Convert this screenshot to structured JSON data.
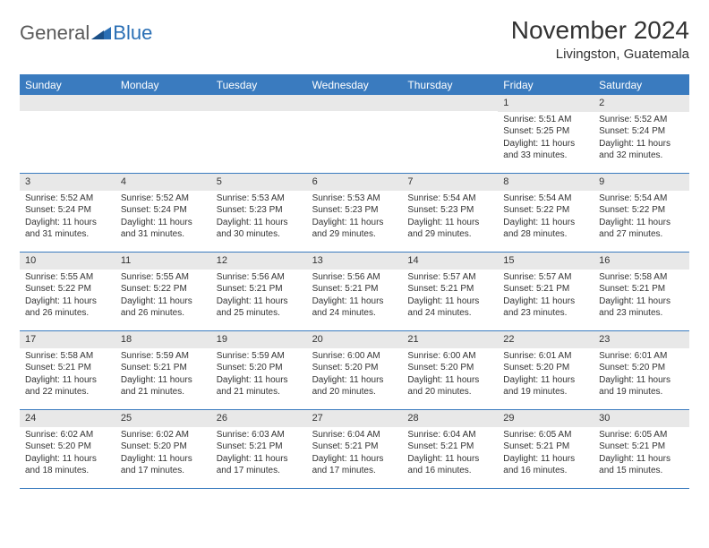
{
  "logo": {
    "textA": "General",
    "textB": "Blue"
  },
  "title": "November 2024",
  "location": "Livingston, Guatemala",
  "colors": {
    "header_bg": "#3a7bbf",
    "header_text": "#ffffff",
    "daynum_bg": "#e8e8e8",
    "border": "#3a7bbf",
    "logo_gray": "#5a5a5a",
    "logo_blue": "#2a6fb5"
  },
  "fonts": {
    "title_pt": 28,
    "location_pt": 15,
    "dow_pt": 12,
    "daynum_pt": 11,
    "body_pt": 10
  },
  "dow": [
    "Sunday",
    "Monday",
    "Tuesday",
    "Wednesday",
    "Thursday",
    "Friday",
    "Saturday"
  ],
  "layout": {
    "columns": 7,
    "rows": 5,
    "leading_blanks": 5
  },
  "days": [
    {
      "n": "1",
      "sunrise": "Sunrise: 5:51 AM",
      "sunset": "Sunset: 5:25 PM",
      "day1": "Daylight: 11 hours",
      "day2": "and 33 minutes."
    },
    {
      "n": "2",
      "sunrise": "Sunrise: 5:52 AM",
      "sunset": "Sunset: 5:24 PM",
      "day1": "Daylight: 11 hours",
      "day2": "and 32 minutes."
    },
    {
      "n": "3",
      "sunrise": "Sunrise: 5:52 AM",
      "sunset": "Sunset: 5:24 PM",
      "day1": "Daylight: 11 hours",
      "day2": "and 31 minutes."
    },
    {
      "n": "4",
      "sunrise": "Sunrise: 5:52 AM",
      "sunset": "Sunset: 5:24 PM",
      "day1": "Daylight: 11 hours",
      "day2": "and 31 minutes."
    },
    {
      "n": "5",
      "sunrise": "Sunrise: 5:53 AM",
      "sunset": "Sunset: 5:23 PM",
      "day1": "Daylight: 11 hours",
      "day2": "and 30 minutes."
    },
    {
      "n": "6",
      "sunrise": "Sunrise: 5:53 AM",
      "sunset": "Sunset: 5:23 PM",
      "day1": "Daylight: 11 hours",
      "day2": "and 29 minutes."
    },
    {
      "n": "7",
      "sunrise": "Sunrise: 5:54 AM",
      "sunset": "Sunset: 5:23 PM",
      "day1": "Daylight: 11 hours",
      "day2": "and 29 minutes."
    },
    {
      "n": "8",
      "sunrise": "Sunrise: 5:54 AM",
      "sunset": "Sunset: 5:22 PM",
      "day1": "Daylight: 11 hours",
      "day2": "and 28 minutes."
    },
    {
      "n": "9",
      "sunrise": "Sunrise: 5:54 AM",
      "sunset": "Sunset: 5:22 PM",
      "day1": "Daylight: 11 hours",
      "day2": "and 27 minutes."
    },
    {
      "n": "10",
      "sunrise": "Sunrise: 5:55 AM",
      "sunset": "Sunset: 5:22 PM",
      "day1": "Daylight: 11 hours",
      "day2": "and 26 minutes."
    },
    {
      "n": "11",
      "sunrise": "Sunrise: 5:55 AM",
      "sunset": "Sunset: 5:22 PM",
      "day1": "Daylight: 11 hours",
      "day2": "and 26 minutes."
    },
    {
      "n": "12",
      "sunrise": "Sunrise: 5:56 AM",
      "sunset": "Sunset: 5:21 PM",
      "day1": "Daylight: 11 hours",
      "day2": "and 25 minutes."
    },
    {
      "n": "13",
      "sunrise": "Sunrise: 5:56 AM",
      "sunset": "Sunset: 5:21 PM",
      "day1": "Daylight: 11 hours",
      "day2": "and 24 minutes."
    },
    {
      "n": "14",
      "sunrise": "Sunrise: 5:57 AM",
      "sunset": "Sunset: 5:21 PM",
      "day1": "Daylight: 11 hours",
      "day2": "and 24 minutes."
    },
    {
      "n": "15",
      "sunrise": "Sunrise: 5:57 AM",
      "sunset": "Sunset: 5:21 PM",
      "day1": "Daylight: 11 hours",
      "day2": "and 23 minutes."
    },
    {
      "n": "16",
      "sunrise": "Sunrise: 5:58 AM",
      "sunset": "Sunset: 5:21 PM",
      "day1": "Daylight: 11 hours",
      "day2": "and 23 minutes."
    },
    {
      "n": "17",
      "sunrise": "Sunrise: 5:58 AM",
      "sunset": "Sunset: 5:21 PM",
      "day1": "Daylight: 11 hours",
      "day2": "and 22 minutes."
    },
    {
      "n": "18",
      "sunrise": "Sunrise: 5:59 AM",
      "sunset": "Sunset: 5:21 PM",
      "day1": "Daylight: 11 hours",
      "day2": "and 21 minutes."
    },
    {
      "n": "19",
      "sunrise": "Sunrise: 5:59 AM",
      "sunset": "Sunset: 5:20 PM",
      "day1": "Daylight: 11 hours",
      "day2": "and 21 minutes."
    },
    {
      "n": "20",
      "sunrise": "Sunrise: 6:00 AM",
      "sunset": "Sunset: 5:20 PM",
      "day1": "Daylight: 11 hours",
      "day2": "and 20 minutes."
    },
    {
      "n": "21",
      "sunrise": "Sunrise: 6:00 AM",
      "sunset": "Sunset: 5:20 PM",
      "day1": "Daylight: 11 hours",
      "day2": "and 20 minutes."
    },
    {
      "n": "22",
      "sunrise": "Sunrise: 6:01 AM",
      "sunset": "Sunset: 5:20 PM",
      "day1": "Daylight: 11 hours",
      "day2": "and 19 minutes."
    },
    {
      "n": "23",
      "sunrise": "Sunrise: 6:01 AM",
      "sunset": "Sunset: 5:20 PM",
      "day1": "Daylight: 11 hours",
      "day2": "and 19 minutes."
    },
    {
      "n": "24",
      "sunrise": "Sunrise: 6:02 AM",
      "sunset": "Sunset: 5:20 PM",
      "day1": "Daylight: 11 hours",
      "day2": "and 18 minutes."
    },
    {
      "n": "25",
      "sunrise": "Sunrise: 6:02 AM",
      "sunset": "Sunset: 5:20 PM",
      "day1": "Daylight: 11 hours",
      "day2": "and 17 minutes."
    },
    {
      "n": "26",
      "sunrise": "Sunrise: 6:03 AM",
      "sunset": "Sunset: 5:21 PM",
      "day1": "Daylight: 11 hours",
      "day2": "and 17 minutes."
    },
    {
      "n": "27",
      "sunrise": "Sunrise: 6:04 AM",
      "sunset": "Sunset: 5:21 PM",
      "day1": "Daylight: 11 hours",
      "day2": "and 17 minutes."
    },
    {
      "n": "28",
      "sunrise": "Sunrise: 6:04 AM",
      "sunset": "Sunset: 5:21 PM",
      "day1": "Daylight: 11 hours",
      "day2": "and 16 minutes."
    },
    {
      "n": "29",
      "sunrise": "Sunrise: 6:05 AM",
      "sunset": "Sunset: 5:21 PM",
      "day1": "Daylight: 11 hours",
      "day2": "and 16 minutes."
    },
    {
      "n": "30",
      "sunrise": "Sunrise: 6:05 AM",
      "sunset": "Sunset: 5:21 PM",
      "day1": "Daylight: 11 hours",
      "day2": "and 15 minutes."
    }
  ]
}
